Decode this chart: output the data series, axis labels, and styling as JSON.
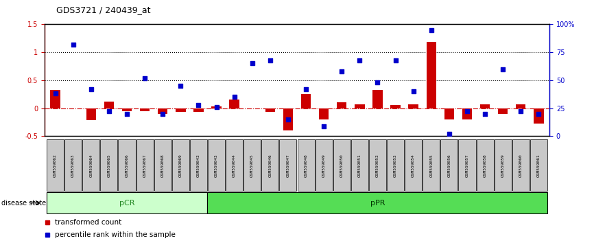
{
  "title": "GDS3721 / 240439_at",
  "samples": [
    "GSM559062",
    "GSM559063",
    "GSM559064",
    "GSM559065",
    "GSM559066",
    "GSM559067",
    "GSM559068",
    "GSM559069",
    "GSM559042",
    "GSM559043",
    "GSM559044",
    "GSM559045",
    "GSM559046",
    "GSM559047",
    "GSM559048",
    "GSM559049",
    "GSM559050",
    "GSM559051",
    "GSM559052",
    "GSM559053",
    "GSM559054",
    "GSM559055",
    "GSM559056",
    "GSM559057",
    "GSM559058",
    "GSM559059",
    "GSM559060",
    "GSM559061"
  ],
  "transformed_count": [
    0.33,
    0.0,
    -0.22,
    0.12,
    -0.05,
    -0.06,
    -0.1,
    -0.07,
    -0.07,
    0.03,
    0.16,
    0.0,
    -0.07,
    -0.4,
    0.25,
    -0.2,
    0.1,
    0.07,
    0.33,
    0.05,
    0.07,
    1.18,
    -0.2,
    -0.2,
    0.07,
    -0.1,
    0.07,
    -0.28
  ],
  "percentile_rank": [
    38,
    82,
    42,
    22,
    20,
    52,
    20,
    45,
    28,
    26,
    35,
    65,
    68,
    15,
    42,
    9,
    58,
    68,
    48,
    68,
    40,
    95,
    2,
    22,
    20,
    60,
    22,
    20
  ],
  "pCR_count": 9,
  "pPR_count": 19,
  "pCR_color": "#ccffcc",
  "pPR_color": "#55dd55",
  "bar_color": "#cc0000",
  "scatter_color": "#0000cc",
  "ylim_left": [
    -0.5,
    1.5
  ],
  "ylim_right": [
    0,
    100
  ],
  "zero_line_color": "#cc0000",
  "background_color": "#ffffff"
}
